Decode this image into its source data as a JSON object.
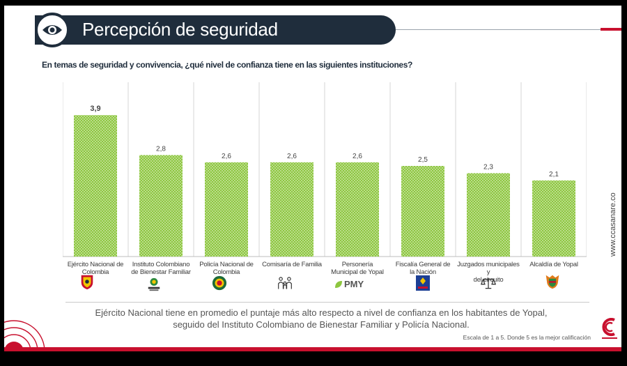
{
  "header": {
    "title": "Percepción de seguridad",
    "question": "En temas de seguridad y convivencia, ¿qué nivel de confianza tiene en las siguientes instituciones?"
  },
  "chart_data": {
    "type": "bar",
    "title": "",
    "xlabel": "",
    "ylabel": "",
    "ylim": [
      0,
      5
    ],
    "grid": false,
    "categories": [
      "Ejército Nacional de Colombia",
      "Instituto Colombiano de Bienestar Familiar",
      "Policía Nacional de Colombia",
      "Comisaría de Familia",
      "Personería Municipal de Yopal",
      "Fiscalía General de la Nación",
      "Juzgados municipales y del circuito",
      "Alcaldía de Yopal"
    ],
    "label_lines": [
      [
        "Ejército Nacional de",
        "Colombia"
      ],
      [
        "Instituto Colombiano",
        "de Bienestar Familiar"
      ],
      [
        "Policía Nacional de",
        "Colombia"
      ],
      [
        "Comisaría de Familia"
      ],
      [
        "Personería",
        "Municipal de Yopal"
      ],
      [
        "Fiscalía General de",
        "la Nación"
      ],
      [
        "Juzgados municipales y",
        "del circuito"
      ],
      [
        "Alcaldía de Yopal"
      ]
    ],
    "values": [
      3.9,
      2.8,
      2.6,
      2.6,
      2.6,
      2.5,
      2.3,
      2.1
    ],
    "value_labels": [
      "3,9",
      "2,8",
      "2,6",
      "2,6",
      "2,6",
      "2,5",
      "2,3",
      "2,1"
    ],
    "bar_color": "#8dc63f",
    "bar_pattern_color": "#ffffff"
  },
  "logos": {
    "pmy_text": "PMY"
  },
  "footer": {
    "conclusion_line1": "Ejército Nacional tiene en promedio el puntaje más alto respecto a nivel de confianza en los habitantes de Yopal,",
    "conclusion_line2": "seguido del Instituto Colombiano de Bienestar Familiar y Policía Nacional.",
    "scale_note": "Escala de 1 a 5. Donde 5 es la mejor calificación",
    "url": "www.ccasanare.co"
  },
  "colors": {
    "banner": "#1f2d3c",
    "accent_red": "#c8102e",
    "bar_green": "#8dc63f"
  }
}
